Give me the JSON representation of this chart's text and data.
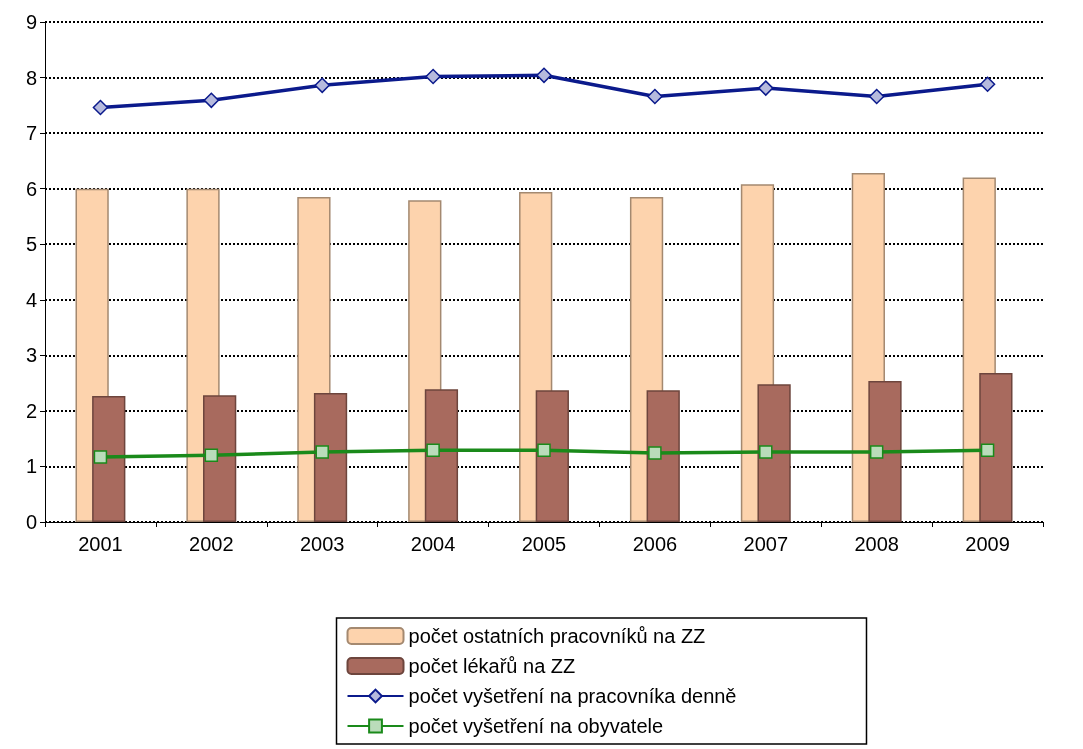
{
  "chart_data": {
    "type": "bar",
    "categories": [
      "2001",
      "2002",
      "2003",
      "2004",
      "2005",
      "2006",
      "2007",
      "2008",
      "2009"
    ],
    "series": [
      {
        "name": "počet ostatních pracovníků na ZZ",
        "color": "#fdd3ad",
        "values": [
          6.0,
          6.0,
          5.85,
          5.79,
          5.94,
          5.85,
          6.08,
          6.28,
          6.2
        ]
      },
      {
        "name": "počet lékařů na ZZ",
        "color": "#a86a5e",
        "values": [
          2.27,
          2.28,
          2.32,
          2.39,
          2.37,
          2.37,
          2.48,
          2.54,
          2.68
        ]
      },
      {
        "name": "počet vyšetření na pracovníka denně",
        "type": "line",
        "color": "#0b1a8c",
        "marker": "diamond",
        "values": [
          7.46,
          7.59,
          7.86,
          8.02,
          8.04,
          7.66,
          7.81,
          7.66,
          7.88
        ]
      },
      {
        "name": "počet vyšetření na obyvatele",
        "type": "line",
        "color": "#1a8a1a",
        "marker": "square",
        "values": [
          1.17,
          1.2,
          1.26,
          1.29,
          1.29,
          1.24,
          1.26,
          1.26,
          1.29
        ]
      }
    ],
    "ylim": [
      0,
      9
    ],
    "yticks": [
      0,
      1,
      2,
      3,
      4,
      5,
      6,
      7,
      8,
      9
    ],
    "grid": "y",
    "legend": "bottom",
    "line_style": "solid"
  }
}
